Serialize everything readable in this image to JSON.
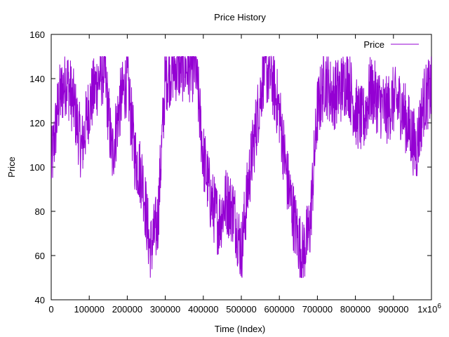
{
  "chart_data": {
    "type": "line",
    "title": "Price History",
    "xlabel": "Time (Index)",
    "ylabel": "Price",
    "xlim": [
      0,
      1000000
    ],
    "ylim": [
      40,
      160
    ],
    "x_ticks": [
      0,
      100000,
      200000,
      300000,
      400000,
      500000,
      600000,
      700000,
      800000,
      900000,
      1000000
    ],
    "x_tick_labels": [
      "0",
      "100000",
      "200000",
      "300000",
      "400000",
      "500000",
      "600000",
      "700000",
      "800000",
      "900000",
      "1x10"
    ],
    "x_tick_last_exponent": "6",
    "y_ticks": [
      40,
      60,
      80,
      100,
      120,
      140,
      160
    ],
    "y_tick_labels": [
      "40",
      "60",
      "80",
      "100",
      "120",
      "140",
      "160"
    ],
    "grid": false,
    "legend_position": "top-right",
    "series": [
      {
        "name": "Price",
        "color": "#9400d3",
        "x": [
          0,
          20000,
          40000,
          60000,
          80000,
          100000,
          120000,
          140000,
          160000,
          180000,
          200000,
          220000,
          240000,
          260000,
          280000,
          300000,
          320000,
          340000,
          360000,
          380000,
          400000,
          420000,
          440000,
          460000,
          480000,
          500000,
          520000,
          540000,
          560000,
          580000,
          600000,
          620000,
          640000,
          660000,
          680000,
          700000,
          720000,
          740000,
          760000,
          780000,
          800000,
          820000,
          840000,
          860000,
          880000,
          900000,
          920000,
          940000,
          960000,
          980000,
          1000000
        ],
        "y": [
          100,
          130,
          140,
          128,
          108,
          128,
          138,
          145,
          105,
          128,
          140,
          105,
          95,
          62,
          75,
          140,
          145,
          145,
          145,
          145,
          105,
          85,
          75,
          85,
          80,
          62,
          95,
          120,
          145,
          140,
          125,
          95,
          75,
          60,
          72,
          125,
          140,
          132,
          135,
          140,
          125,
          120,
          135,
          130,
          125,
          130,
          128,
          118,
          108,
          130,
          135
        ]
      }
    ]
  }
}
